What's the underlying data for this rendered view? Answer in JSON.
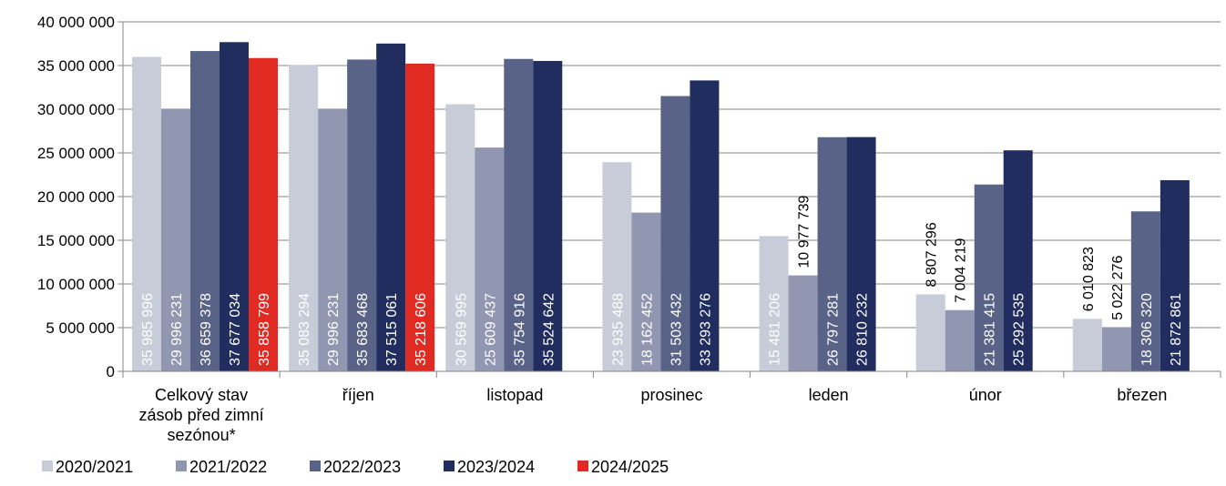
{
  "chart_data": {
    "type": "bar",
    "title": "",
    "xlabel": "",
    "ylabel": "",
    "ylim": [
      0,
      40000000
    ],
    "yticks": [
      0,
      5000000,
      10000000,
      15000000,
      20000000,
      25000000,
      30000000,
      35000000,
      40000000
    ],
    "ytick_labels": [
      "0",
      "5 000 000",
      "10 000 000",
      "15 000 000",
      "20 000 000",
      "25 000 000",
      "30 000 000",
      "35 000 000",
      "40 000 000"
    ],
    "grid": true,
    "legend_position": "bottom-left",
    "categories": [
      [
        "Celkový stav",
        "zásob před zimní",
        "sezónou*"
      ],
      [
        "říjen"
      ],
      [
        "listopad"
      ],
      [
        "prosinec"
      ],
      [
        "leden"
      ],
      [
        "únor"
      ],
      [
        "březen"
      ]
    ],
    "series": [
      {
        "name": "2020/2021",
        "color": "#c8ccd8",
        "values": [
          35985996,
          35083294,
          30569995,
          23935488,
          15481206,
          8807296,
          6010823
        ],
        "labels": [
          "35 985 996",
          "35 083 294",
          "30 569 995",
          "23 935 488",
          "15 481 206",
          "8 807 296",
          "6 010 823"
        ]
      },
      {
        "name": "2021/2022",
        "color": "#9196b1",
        "values": [
          29996231,
          29996231,
          25609437,
          18162452,
          10977739,
          7004219,
          5022276
        ],
        "labels": [
          "29 996 231",
          "29 996 231",
          "25 609 437",
          "18 162 452",
          "10 977 739",
          "7 004 219",
          "5 022 276"
        ]
      },
      {
        "name": "2022/2023",
        "color": "#596387",
        "values": [
          36659378,
          35683468,
          35754916,
          31503432,
          26797281,
          21381415,
          18306320
        ],
        "labels": [
          "36 659 378",
          "35 683 468",
          "35 754 916",
          "31 503 432",
          "26 797 281",
          "21 381 415",
          "18 306 320"
        ]
      },
      {
        "name": "2023/2024",
        "color": "#212d5e",
        "values": [
          37677034,
          37515061,
          35524642,
          33293276,
          26810232,
          25292535,
          21872861
        ],
        "labels": [
          "37 677 034",
          "37 515 061",
          "35 524 642",
          "33 293 276",
          "26 810 232",
          "25 292 535",
          "21 872 861"
        ]
      },
      {
        "name": "2024/2025",
        "color": "#e12a21",
        "values": [
          35858799,
          35218606,
          null,
          null,
          null,
          null,
          null
        ],
        "labels": [
          "35 858 799",
          "35 218 606",
          null,
          null,
          null,
          null,
          null
        ]
      }
    ],
    "outside_labels": [
      {
        "series": 1,
        "category": 4
      },
      {
        "series": 0,
        "category": 5
      },
      {
        "series": 1,
        "category": 5
      },
      {
        "series": 0,
        "category": 6
      },
      {
        "series": 1,
        "category": 6
      }
    ],
    "axis_color": "#868686",
    "grid_color": "#868686"
  }
}
